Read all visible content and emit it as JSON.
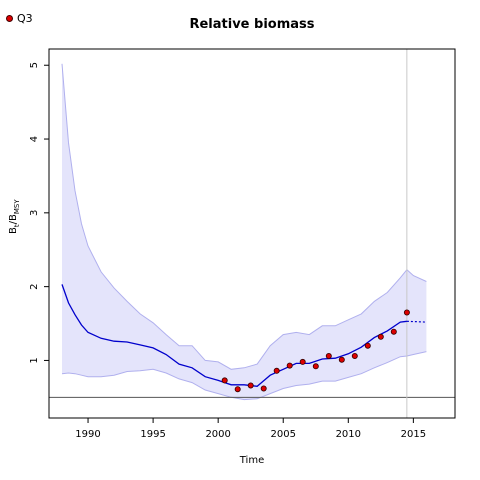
{
  "chart_data": {
    "type": "line",
    "title": "Relative biomass",
    "xlabel": "Time",
    "ylabel": {
      "main": "B",
      "sub1": "t",
      "sep": "/B",
      "sub2": "MSY"
    },
    "legend": {
      "label": "Q3",
      "placement": "top-left"
    },
    "xlim": [
      1987.0,
      2018.2
    ],
    "ylim": [
      0.22,
      5.22
    ],
    "x_ticks": [
      1990,
      1995,
      2000,
      2005,
      2010,
      2015
    ],
    "y_ticks": [
      1,
      2,
      3,
      4,
      5
    ],
    "reference_line_y": 0.5,
    "vertical_line_x": 2014.5,
    "colors": {
      "median": "#0000cc",
      "band_fill": "#e4e4fb",
      "band_edge": "#b0b0ee",
      "points": "#dd0000",
      "ref_line": "#555555",
      "vline": "#c8c8c8"
    },
    "series": [
      {
        "kind": "median",
        "x": [
          1988,
          1988.5,
          1989,
          1989.5,
          1990,
          1991,
          1992,
          1993,
          1994,
          1995,
          1996,
          1997,
          1998,
          1999,
          2000,
          2001,
          2002,
          2003,
          2004,
          2005,
          2006,
          2007,
          2008,
          2009,
          2010,
          2011,
          2012,
          2013,
          2014,
          2014.5
        ],
        "y": [
          2.03,
          1.78,
          1.62,
          1.48,
          1.38,
          1.3,
          1.26,
          1.25,
          1.21,
          1.17,
          1.08,
          0.95,
          0.9,
          0.78,
          0.73,
          0.67,
          0.67,
          0.65,
          0.8,
          0.88,
          0.96,
          0.96,
          1.02,
          1.03,
          1.09,
          1.18,
          1.31,
          1.4,
          1.52,
          1.53
        ]
      },
      {
        "kind": "projection",
        "x": [
          2014.5,
          2016
        ],
        "y": [
          1.53,
          1.52
        ]
      },
      {
        "kind": "band_upper",
        "x": [
          1988,
          1988.5,
          1989,
          1989.5,
          1990,
          1991,
          1992,
          1993,
          1994,
          1995,
          1996,
          1997,
          1998,
          1999,
          2000,
          2001,
          2002,
          2003,
          2004,
          2005,
          2006,
          2007,
          2008,
          2009,
          2010,
          2011,
          2012,
          2013,
          2014,
          2014.5,
          2015,
          2016
        ],
        "y": [
          5.02,
          3.95,
          3.3,
          2.85,
          2.55,
          2.2,
          1.98,
          1.8,
          1.63,
          1.51,
          1.35,
          1.2,
          1.2,
          1.0,
          0.98,
          0.88,
          0.9,
          0.95,
          1.2,
          1.35,
          1.38,
          1.35,
          1.47,
          1.47,
          1.55,
          1.63,
          1.8,
          1.92,
          2.12,
          2.23,
          2.15,
          2.07
        ]
      },
      {
        "kind": "band_lower",
        "x": [
          1988,
          1988.5,
          1989,
          1989.5,
          1990,
          1991,
          1992,
          1993,
          1994,
          1995,
          1996,
          1997,
          1998,
          1999,
          2000,
          2001,
          2002,
          2003,
          2004,
          2005,
          2006,
          2007,
          2008,
          2009,
          2010,
          2011,
          2012,
          2013,
          2014,
          2014.5,
          2015,
          2016
        ],
        "y": [
          0.82,
          0.83,
          0.82,
          0.8,
          0.78,
          0.78,
          0.8,
          0.85,
          0.86,
          0.88,
          0.83,
          0.75,
          0.7,
          0.6,
          0.55,
          0.5,
          0.47,
          0.48,
          0.55,
          0.62,
          0.66,
          0.68,
          0.72,
          0.72,
          0.77,
          0.82,
          0.9,
          0.97,
          1.05,
          1.06,
          1.08,
          1.12
        ]
      }
    ],
    "points": {
      "name": "Q3",
      "x": [
        2000.5,
        2001.5,
        2002.5,
        2003.5,
        2004.5,
        2005.5,
        2006.5,
        2007.5,
        2008.5,
        2009.5,
        2010.5,
        2011.5,
        2012.5,
        2013.5,
        2014.5
      ],
      "y": [
        0.73,
        0.61,
        0.66,
        0.62,
        0.86,
        0.93,
        0.98,
        0.92,
        1.06,
        1.01,
        1.06,
        1.2,
        1.32,
        1.39,
        1.65
      ]
    }
  }
}
